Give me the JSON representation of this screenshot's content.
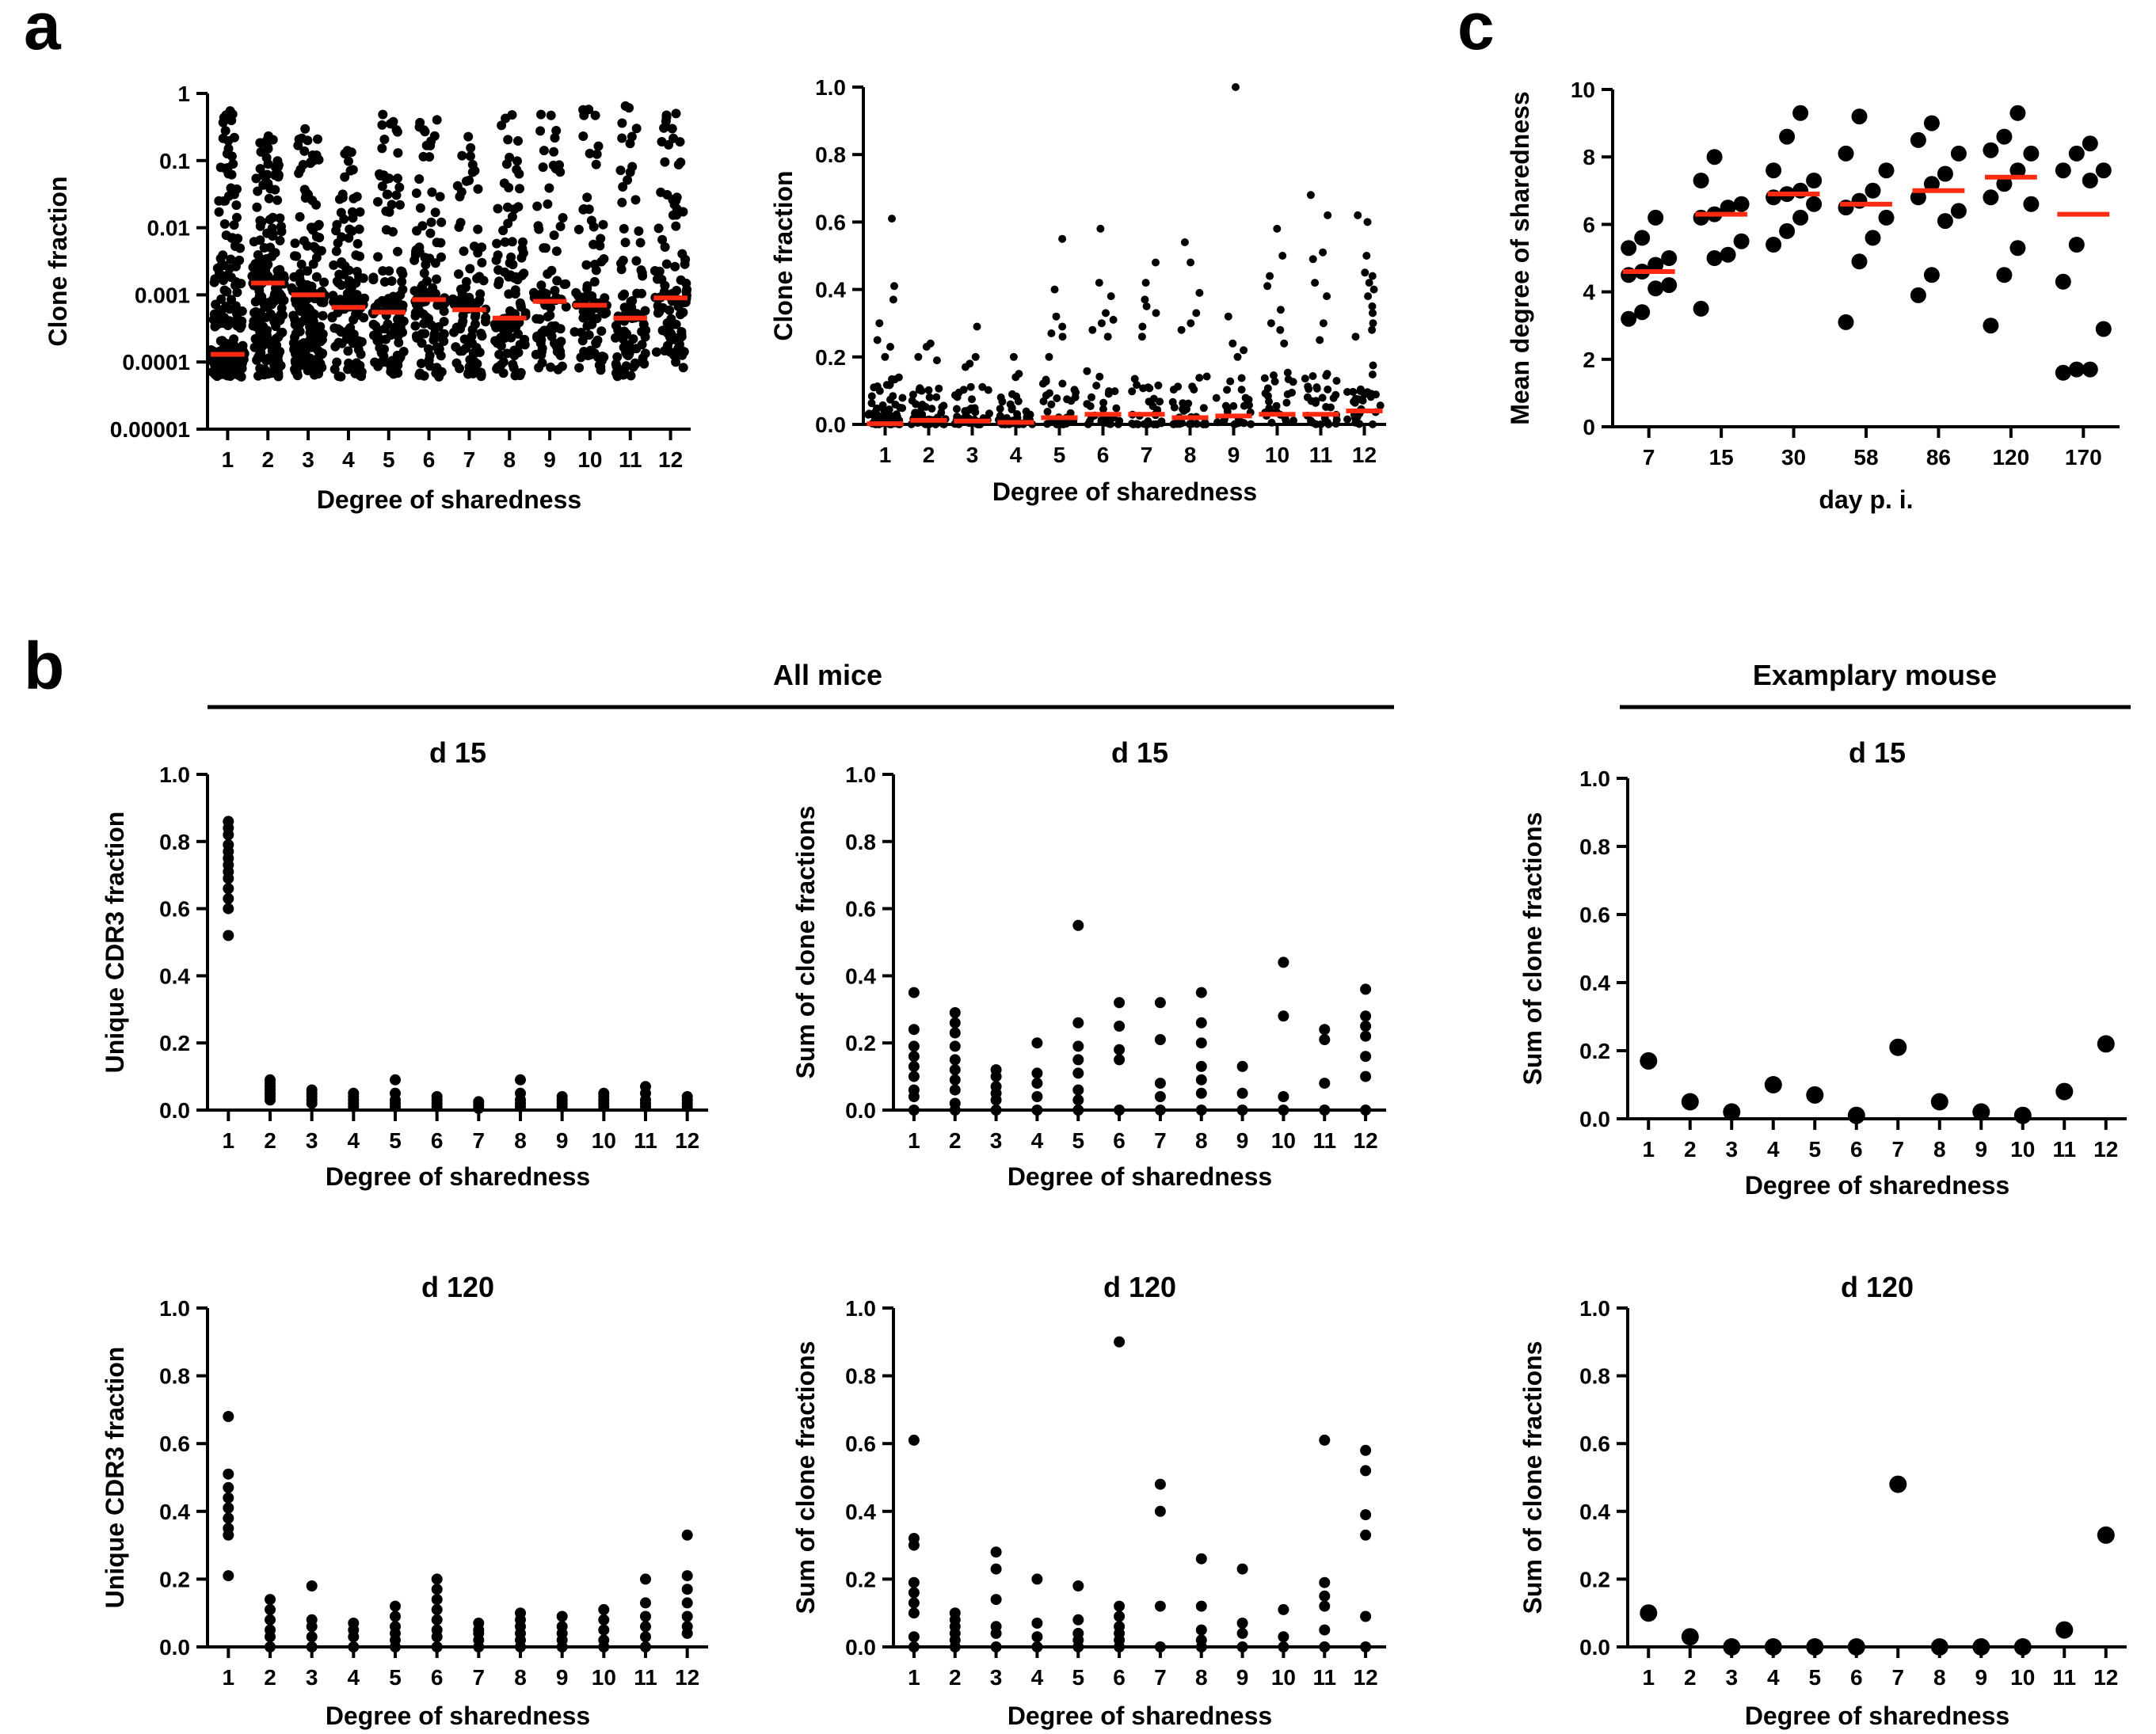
{
  "panels": {
    "a": "a",
    "b": "b",
    "c": "c"
  },
  "groups": {
    "all_mice": "All mice",
    "examplary_mouse": "Examplary mouse"
  },
  "colors": {
    "points": "#000000",
    "median": "#ff2a12",
    "axis": "#000000"
  },
  "chart_data": [
    {
      "id": "a_log",
      "type": "scatter",
      "title": "",
      "xlabel": "Degree of sharedness",
      "ylabel": "Clone fraction",
      "yscale": "log",
      "ylim": [
        1e-05,
        1
      ],
      "yticks": [
        1e-05,
        0.0001,
        0.001,
        0.01,
        0.1,
        1
      ],
      "ytick_labels": [
        "0.00001",
        "0.0001",
        "0.001",
        "0.01",
        "0.1",
        "1"
      ],
      "categories": [
        "1",
        "2",
        "3",
        "4",
        "5",
        "6",
        "7",
        "8",
        "9",
        "10",
        "11",
        "12"
      ],
      "medians": [
        0.00013,
        0.0015,
        0.001,
        0.00065,
        0.00055,
        0.00085,
        0.0006,
        0.00045,
        0.0008,
        0.0007,
        0.00045,
        0.0009
      ],
      "spread_min": [
        6e-05,
        6e-05,
        6e-05,
        6e-05,
        6e-05,
        6e-05,
        6e-05,
        6e-05,
        7e-05,
        7e-05,
        6e-05,
        8e-05
      ],
      "spread_max": [
        0.6,
        0.25,
        0.3,
        0.2,
        0.55,
        0.6,
        0.45,
        0.5,
        0.95,
        0.6,
        0.65,
        0.6
      ],
      "n_points": [
        260,
        200,
        170,
        120,
        110,
        110,
        90,
        100,
        80,
        80,
        90,
        100
      ]
    },
    {
      "id": "a_linear",
      "type": "scatter",
      "title": "",
      "xlabel": "Degree of sharedness",
      "ylabel": "Clone fraction",
      "ylim": [
        0,
        1.0
      ],
      "yticks": [
        0,
        0.2,
        0.4,
        0.6,
        0.8,
        1.0
      ],
      "ytick_labels": [
        "0.0",
        "0.2",
        "0.4",
        "0.6",
        "0.8",
        "1.0"
      ],
      "categories": [
        "1",
        "2",
        "3",
        "4",
        "5",
        "6",
        "7",
        "8",
        "9",
        "10",
        "11",
        "12"
      ],
      "medians": [
        0.002,
        0.012,
        0.01,
        0.006,
        0.02,
        0.03,
        0.03,
        0.02,
        0.025,
        0.03,
        0.03,
        0.04
      ],
      "outliers": [
        [
          0.61,
          0.41,
          0.37,
          0.3,
          0.25,
          0.23,
          0.2
        ],
        [
          0.24,
          0.23,
          0.2,
          0.19
        ],
        [
          0.29,
          0.2,
          0.18,
          0.17
        ],
        [
          0.2,
          0.15,
          0.14
        ],
        [
          0.55,
          0.4,
          0.32,
          0.29,
          0.27,
          0.26,
          0.2
        ],
        [
          0.58,
          0.42,
          0.38,
          0.33,
          0.31,
          0.3,
          0.28,
          0.26
        ],
        [
          0.48,
          0.42,
          0.37,
          0.35,
          0.33,
          0.29,
          0.26
        ],
        [
          0.54,
          0.48,
          0.39,
          0.33,
          0.3,
          0.28
        ],
        [
          1.0,
          0.32,
          0.24,
          0.22,
          0.2
        ],
        [
          0.58,
          0.5,
          0.44,
          0.41,
          0.34,
          0.3,
          0.28,
          0.24
        ],
        [
          0.68,
          0.62,
          0.51,
          0.49,
          0.42,
          0.38,
          0.3,
          0.25
        ],
        [
          0.62,
          0.6,
          0.5,
          0.45,
          0.44,
          0.42,
          0.4,
          0.38,
          0.35,
          0.33,
          0.3,
          0.28,
          0.26
        ]
      ],
      "bulk_max": [
        0.14,
        0.12,
        0.12,
        0.1,
        0.14,
        0.16,
        0.16,
        0.16,
        0.14,
        0.16,
        0.16,
        0.2
      ],
      "bulk_counts": [
        60,
        45,
        40,
        35,
        30,
        30,
        30,
        30,
        25,
        25,
        30,
        30
      ]
    },
    {
      "id": "c_mean",
      "type": "scatter",
      "title": "",
      "xlabel": "day p. i.",
      "ylabel": "Mean degree of sharedness",
      "ylim": [
        0,
        10
      ],
      "yticks": [
        0,
        2,
        4,
        6,
        8,
        10
      ],
      "ytick_labels": [
        "0",
        "2",
        "4",
        "6",
        "8",
        "10"
      ],
      "categories": [
        "7",
        "15",
        "30",
        "58",
        "86",
        "120",
        "170"
      ],
      "groups": [
        [
          3.2,
          3.4,
          4.1,
          4.2,
          4.5,
          4.6,
          4.8,
          5.0,
          5.3,
          5.6,
          6.2
        ],
        [
          3.5,
          5.0,
          5.1,
          5.5,
          6.2,
          6.3,
          6.5,
          6.6,
          7.3,
          8.0
        ],
        [
          5.4,
          5.8,
          6.2,
          6.6,
          6.8,
          6.9,
          7.0,
          7.3,
          7.6,
          8.6,
          9.3
        ],
        [
          3.1,
          4.9,
          5.6,
          6.2,
          6.5,
          6.7,
          7.0,
          7.6,
          8.1,
          9.2
        ],
        [
          3.9,
          4.5,
          6.1,
          6.4,
          6.8,
          7.2,
          7.5,
          8.1,
          8.5,
          9.0
        ],
        [
          3.0,
          4.5,
          5.3,
          6.6,
          6.8,
          7.2,
          7.6,
          8.1,
          8.2,
          8.6,
          9.3
        ],
        [
          1.6,
          1.7,
          1.7,
          2.9,
          4.3,
          5.4,
          7.3,
          7.6,
          7.6,
          8.1,
          8.4
        ]
      ],
      "means": [
        4.6,
        6.3,
        6.9,
        6.6,
        7.0,
        7.4,
        6.3
      ]
    },
    {
      "id": "b_unique_d15",
      "type": "scatter",
      "title": "d 15",
      "xlabel": "Degree of sharedness",
      "ylabel": "Unique CDR3 fraction",
      "ylim": [
        0,
        1.0
      ],
      "yticks": [
        0,
        0.2,
        0.4,
        0.6,
        0.8,
        1.0
      ],
      "ytick_labels": [
        "0.0",
        "0.2",
        "0.4",
        "0.6",
        "0.8",
        "1.0"
      ],
      "categories": [
        "1",
        "2",
        "3",
        "4",
        "5",
        "6",
        "7",
        "8",
        "9",
        "10",
        "11",
        "12"
      ],
      "values": [
        [
          0.52,
          0.6,
          0.63,
          0.66,
          0.69,
          0.71,
          0.73,
          0.75,
          0.77,
          0.79,
          0.82,
          0.84,
          0.86
        ],
        [
          0.03,
          0.04,
          0.05,
          0.06,
          0.07,
          0.08,
          0.09
        ],
        [
          0.02,
          0.03,
          0.04,
          0.05,
          0.06
        ],
        [
          0.01,
          0.02,
          0.03,
          0.04,
          0.05
        ],
        [
          0.01,
          0.02,
          0.03,
          0.05,
          0.09
        ],
        [
          0.01,
          0.02,
          0.03,
          0.04
        ],
        [
          0.005,
          0.015,
          0.025
        ],
        [
          0.01,
          0.02,
          0.03,
          0.05,
          0.09
        ],
        [
          0.01,
          0.02,
          0.03,
          0.04
        ],
        [
          0.01,
          0.02,
          0.03,
          0.04,
          0.05
        ],
        [
          0.01,
          0.02,
          0.03,
          0.05,
          0.07
        ],
        [
          0.01,
          0.02,
          0.03,
          0.04
        ]
      ]
    },
    {
      "id": "b_sum_d15",
      "type": "scatter",
      "title": "d 15",
      "xlabel": "Degree of sharedness",
      "ylabel": "Sum of clone fractions",
      "ylim": [
        0,
        1.0
      ],
      "yticks": [
        0,
        0.2,
        0.4,
        0.6,
        0.8,
        1.0
      ],
      "ytick_labels": [
        "0.0",
        "0.2",
        "0.4",
        "0.6",
        "0.8",
        "1.0"
      ],
      "categories": [
        "1",
        "2",
        "3",
        "4",
        "5",
        "6",
        "7",
        "8",
        "9",
        "10",
        "11",
        "12"
      ],
      "values": [
        [
          0.0,
          0.04,
          0.06,
          0.1,
          0.13,
          0.16,
          0.19,
          0.24,
          0.35
        ],
        [
          0.0,
          0.02,
          0.06,
          0.09,
          0.12,
          0.15,
          0.19,
          0.23,
          0.26,
          0.29
        ],
        [
          0.0,
          0.03,
          0.05,
          0.07,
          0.1,
          0.12
        ],
        [
          0.0,
          0.04,
          0.08,
          0.11,
          0.2
        ],
        [
          0.0,
          0.03,
          0.06,
          0.11,
          0.15,
          0.19,
          0.26,
          0.55
        ],
        [
          0.0,
          0.15,
          0.18,
          0.25,
          0.32
        ],
        [
          0.0,
          0.04,
          0.08,
          0.21,
          0.32
        ],
        [
          0.0,
          0.05,
          0.09,
          0.13,
          0.2,
          0.26,
          0.35
        ],
        [
          0.0,
          0.05,
          0.13
        ],
        [
          0.0,
          0.04,
          0.28,
          0.44
        ],
        [
          0.0,
          0.08,
          0.21,
          0.24
        ],
        [
          0.0,
          0.1,
          0.16,
          0.22,
          0.25,
          0.28,
          0.36
        ]
      ]
    },
    {
      "id": "b_ex_d15",
      "type": "scatter",
      "title": "d 15",
      "xlabel": "Degree of sharedness",
      "ylabel": "Sum of clone fractions",
      "ylim": [
        0,
        1.0
      ],
      "yticks": [
        0,
        0.2,
        0.4,
        0.6,
        0.8,
        1.0
      ],
      "ytick_labels": [
        "0.0",
        "0.2",
        "0.4",
        "0.6",
        "0.8",
        "1.0"
      ],
      "categories": [
        "1",
        "2",
        "3",
        "4",
        "5",
        "6",
        "7",
        "8",
        "9",
        "10",
        "11",
        "12"
      ],
      "values": [
        [
          0.17
        ],
        [
          0.05
        ],
        [
          0.02
        ],
        [
          0.1
        ],
        [
          0.07
        ],
        [
          0.01
        ],
        [
          0.21
        ],
        [
          0.05
        ],
        [
          0.02
        ],
        [
          0.01
        ],
        [
          0.08
        ],
        [
          0.22
        ]
      ]
    },
    {
      "id": "b_unique_d120",
      "type": "scatter",
      "title": "d 120",
      "xlabel": "Degree of sharedness",
      "ylabel": "Unique CDR3 fraction",
      "ylim": [
        0,
        1.0
      ],
      "yticks": [
        0,
        0.2,
        0.4,
        0.6,
        0.8,
        1.0
      ],
      "ytick_labels": [
        "0.0",
        "0.2",
        "0.4",
        "0.6",
        "0.8",
        "1.0"
      ],
      "categories": [
        "1",
        "2",
        "3",
        "4",
        "5",
        "6",
        "7",
        "8",
        "9",
        "10",
        "11",
        "12"
      ],
      "values": [
        [
          0.21,
          0.33,
          0.35,
          0.38,
          0.41,
          0.44,
          0.47,
          0.51,
          0.68
        ],
        [
          0.0,
          0.03,
          0.05,
          0.08,
          0.11,
          0.14
        ],
        [
          0.0,
          0.03,
          0.06,
          0.08,
          0.18
        ],
        [
          0.0,
          0.03,
          0.05,
          0.07
        ],
        [
          0.0,
          0.02,
          0.04,
          0.06,
          0.09,
          0.12
        ],
        [
          0.0,
          0.03,
          0.05,
          0.08,
          0.11,
          0.14,
          0.17,
          0.2
        ],
        [
          0.0,
          0.02,
          0.04,
          0.05,
          0.07
        ],
        [
          0.0,
          0.02,
          0.04,
          0.06,
          0.08,
          0.1
        ],
        [
          0.0,
          0.02,
          0.04,
          0.06,
          0.09
        ],
        [
          0.0,
          0.02,
          0.05,
          0.08,
          0.11
        ],
        [
          0.0,
          0.03,
          0.06,
          0.09,
          0.13,
          0.2
        ],
        [
          0.04,
          0.06,
          0.09,
          0.13,
          0.17,
          0.21,
          0.33
        ]
      ]
    },
    {
      "id": "b_sum_d120",
      "type": "scatter",
      "title": "d 120",
      "xlabel": "Degree of sharedness",
      "ylabel": "Sum of clone fractions",
      "ylim": [
        0,
        1.0
      ],
      "yticks": [
        0,
        0.2,
        0.4,
        0.6,
        0.8,
        1.0
      ],
      "ytick_labels": [
        "0.0",
        "0.2",
        "0.4",
        "0.6",
        "0.8",
        "1.0"
      ],
      "categories": [
        "1",
        "2",
        "3",
        "4",
        "5",
        "6",
        "7",
        "8",
        "9",
        "10",
        "11",
        "12"
      ],
      "values": [
        [
          0.0,
          0.03,
          0.1,
          0.13,
          0.16,
          0.19,
          0.3,
          0.32,
          0.61
        ],
        [
          0.0,
          0.02,
          0.04,
          0.06,
          0.08,
          0.1
        ],
        [
          0.0,
          0.04,
          0.06,
          0.14,
          0.23,
          0.28
        ],
        [
          0.0,
          0.03,
          0.07,
          0.2
        ],
        [
          0.0,
          0.02,
          0.04,
          0.08,
          0.18
        ],
        [
          0.0,
          0.02,
          0.04,
          0.06,
          0.09,
          0.12,
          0.9
        ],
        [
          0.0,
          0.12,
          0.4,
          0.48
        ],
        [
          0.0,
          0.02,
          0.05,
          0.12,
          0.26
        ],
        [
          0.0,
          0.04,
          0.07,
          0.23
        ],
        [
          0.0,
          0.03,
          0.11
        ],
        [
          0.0,
          0.05,
          0.12,
          0.15,
          0.19,
          0.61
        ],
        [
          0.0,
          0.09,
          0.33,
          0.39,
          0.52,
          0.58
        ]
      ]
    },
    {
      "id": "b_ex_d120",
      "type": "scatter",
      "title": "d 120",
      "xlabel": "Degree of sharedness",
      "ylabel": "Sum of clone fractions",
      "ylim": [
        0,
        1.0
      ],
      "yticks": [
        0,
        0.2,
        0.4,
        0.6,
        0.8,
        1.0
      ],
      "ytick_labels": [
        "0.0",
        "0.2",
        "0.4",
        "0.6",
        "0.8",
        "1.0"
      ],
      "categories": [
        "1",
        "2",
        "3",
        "4",
        "5",
        "6",
        "7",
        "8",
        "9",
        "10",
        "11",
        "12"
      ],
      "values": [
        [
          0.1
        ],
        [
          0.03
        ],
        [
          0.0
        ],
        [
          0.0
        ],
        [
          0.0
        ],
        [
          0.0
        ],
        [
          0.48
        ],
        [
          0.0
        ],
        [
          0.0
        ],
        [
          0.0
        ],
        [
          0.05
        ],
        [
          0.33
        ]
      ]
    }
  ]
}
